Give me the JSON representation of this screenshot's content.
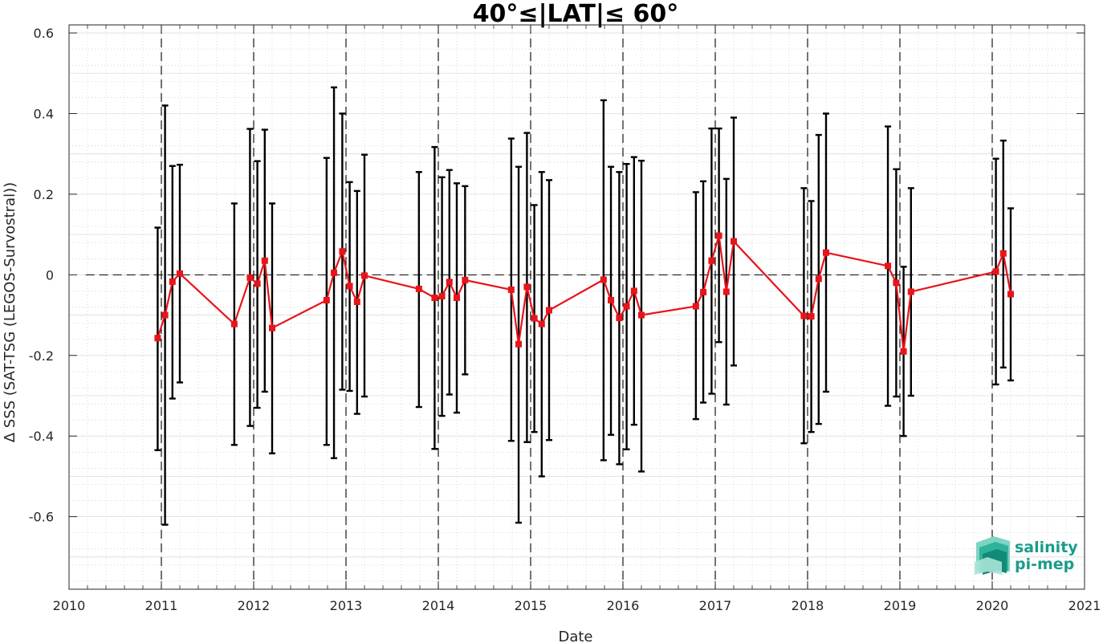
{
  "chart_data": {
    "type": "line",
    "title": "40°≤|LAT|≤ 60°",
    "xlabel": "Date",
    "ylabel": "Δ SSS (SAT-TSG (LEGOS-Survostral))",
    "xlim": [
      2010,
      2021
    ],
    "ylim": [
      -0.78,
      0.62
    ],
    "xticks": [
      2010,
      2011,
      2012,
      2013,
      2014,
      2015,
      2016,
      2017,
      2018,
      2019,
      2020,
      2021
    ],
    "xtick_labels": [
      "2010",
      "2011",
      "2012",
      "2013",
      "2014",
      "2015",
      "2016",
      "2017",
      "2018",
      "2019",
      "2020",
      "2021"
    ],
    "yticks": [
      -0.6,
      -0.4,
      -0.2,
      0,
      0.2,
      0.4,
      0.6
    ],
    "ytick_labels": [
      "-0.6",
      "-0.4",
      "-0.2",
      "0",
      "0.2",
      "0.4",
      "0.6"
    ],
    "grid": true,
    "minor_grid": true,
    "year_lines": [
      2011,
      2012,
      2013,
      2014,
      2015,
      2016,
      2017,
      2018,
      2019,
      2020
    ],
    "zero_line": 0,
    "colors": {
      "series": "#e8141a",
      "errorbar": "#000000",
      "logo": "#1a9c8a"
    },
    "series": [
      {
        "marker": "square",
        "points": [
          {
            "x": 2010.96,
            "y": -0.157,
            "lo": -0.435,
            "hi": 0.117
          },
          {
            "x": 2011.04,
            "y": -0.1,
            "lo": -0.62,
            "hi": 0.42
          },
          {
            "x": 2011.12,
            "y": -0.017,
            "lo": -0.307,
            "hi": 0.27
          },
          {
            "x": 2011.2,
            "y": 0.003,
            "lo": -0.267,
            "hi": 0.273
          },
          {
            "x": 2011.79,
            "y": -0.122,
            "lo": -0.422,
            "hi": 0.177
          },
          {
            "x": 2011.96,
            "y": -0.007,
            "lo": -0.375,
            "hi": 0.362
          },
          {
            "x": 2012.04,
            "y": -0.022,
            "lo": -0.33,
            "hi": 0.282
          },
          {
            "x": 2012.12,
            "y": 0.035,
            "lo": -0.29,
            "hi": 0.36
          },
          {
            "x": 2012.2,
            "y": -0.132,
            "lo": -0.443,
            "hi": 0.177
          },
          {
            "x": 2012.79,
            "y": -0.063,
            "lo": -0.422,
            "hi": 0.29
          },
          {
            "x": 2012.87,
            "y": 0.005,
            "lo": -0.455,
            "hi": 0.465
          },
          {
            "x": 2012.96,
            "y": 0.058,
            "lo": -0.285,
            "hi": 0.4
          },
          {
            "x": 2013.04,
            "y": -0.028,
            "lo": -0.288,
            "hi": 0.23
          },
          {
            "x": 2013.12,
            "y": -0.067,
            "lo": -0.345,
            "hi": 0.208
          },
          {
            "x": 2013.2,
            "y": -0.002,
            "lo": -0.302,
            "hi": 0.298
          },
          {
            "x": 2013.79,
            "y": -0.035,
            "lo": -0.328,
            "hi": 0.255
          },
          {
            "x": 2013.96,
            "y": -0.057,
            "lo": -0.432,
            "hi": 0.317
          },
          {
            "x": 2014.04,
            "y": -0.053,
            "lo": -0.35,
            "hi": 0.242
          },
          {
            "x": 2014.12,
            "y": -0.018,
            "lo": -0.297,
            "hi": 0.26
          },
          {
            "x": 2014.2,
            "y": -0.057,
            "lo": -0.342,
            "hi": 0.227
          },
          {
            "x": 2014.29,
            "y": -0.013,
            "lo": -0.247,
            "hi": 0.22
          },
          {
            "x": 2014.79,
            "y": -0.037,
            "lo": -0.412,
            "hi": 0.338
          },
          {
            "x": 2014.87,
            "y": -0.172,
            "lo": -0.615,
            "hi": 0.268
          },
          {
            "x": 2014.96,
            "y": -0.03,
            "lo": -0.415,
            "hi": 0.352
          },
          {
            "x": 2015.04,
            "y": -0.108,
            "lo": -0.39,
            "hi": 0.173
          },
          {
            "x": 2015.12,
            "y": -0.122,
            "lo": -0.5,
            "hi": 0.255
          },
          {
            "x": 2015.2,
            "y": -0.088,
            "lo": -0.41,
            "hi": 0.235
          },
          {
            "x": 2015.79,
            "y": -0.012,
            "lo": -0.46,
            "hi": 0.433
          },
          {
            "x": 2015.87,
            "y": -0.063,
            "lo": -0.397,
            "hi": 0.268
          },
          {
            "x": 2015.96,
            "y": -0.107,
            "lo": -0.47,
            "hi": 0.255
          },
          {
            "x": 2016.04,
            "y": -0.078,
            "lo": -0.433,
            "hi": 0.275
          },
          {
            "x": 2016.12,
            "y": -0.04,
            "lo": -0.372,
            "hi": 0.292
          },
          {
            "x": 2016.2,
            "y": -0.1,
            "lo": -0.488,
            "hi": 0.283
          },
          {
            "x": 2016.79,
            "y": -0.078,
            "lo": -0.358,
            "hi": 0.205
          },
          {
            "x": 2016.87,
            "y": -0.043,
            "lo": -0.317,
            "hi": 0.232
          },
          {
            "x": 2016.96,
            "y": 0.035,
            "lo": -0.295,
            "hi": 0.363
          },
          {
            "x": 2017.04,
            "y": 0.097,
            "lo": -0.167,
            "hi": 0.363
          },
          {
            "x": 2017.12,
            "y": -0.042,
            "lo": -0.322,
            "hi": 0.238
          },
          {
            "x": 2017.2,
            "y": 0.083,
            "lo": -0.225,
            "hi": 0.39
          },
          {
            "x": 2017.96,
            "y": -0.102,
            "lo": -0.418,
            "hi": 0.215
          },
          {
            "x": 2018.04,
            "y": -0.103,
            "lo": -0.39,
            "hi": 0.183
          },
          {
            "x": 2018.12,
            "y": -0.01,
            "lo": -0.37,
            "hi": 0.347
          },
          {
            "x": 2018.2,
            "y": 0.055,
            "lo": -0.29,
            "hi": 0.4
          },
          {
            "x": 2018.87,
            "y": 0.022,
            "lo": -0.325,
            "hi": 0.368
          },
          {
            "x": 2018.96,
            "y": -0.02,
            "lo": -0.302,
            "hi": 0.262
          },
          {
            "x": 2019.04,
            "y": -0.19,
            "lo": -0.4,
            "hi": 0.02
          },
          {
            "x": 2019.12,
            "y": -0.042,
            "lo": -0.3,
            "hi": 0.215
          },
          {
            "x": 2020.04,
            "y": 0.008,
            "lo": -0.272,
            "hi": 0.288
          },
          {
            "x": 2020.12,
            "y": 0.053,
            "lo": -0.23,
            "hi": 0.333
          },
          {
            "x": 2020.2,
            "y": -0.048,
            "lo": -0.262,
            "hi": 0.165
          }
        ]
      }
    ]
  },
  "logo": {
    "line1": "salinity",
    "line2": "pi-mep"
  }
}
